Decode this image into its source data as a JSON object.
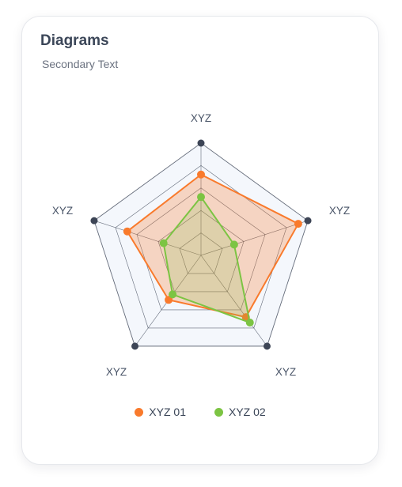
{
  "card": {
    "title": "Diagrams",
    "subtitle": "Secondary Text"
  },
  "colors": {
    "series1": "#f97a2c",
    "series1_fill": "rgba(249, 122, 44, 0.28)",
    "series2": "#7cc443",
    "series2_fill": "rgba(124, 196, 67, 0.18)",
    "grid": "#4a5263",
    "vertex": "#3d4556",
    "area_bg": "#f4f7fc"
  },
  "chart_data": {
    "type": "radar",
    "title": "Diagrams",
    "axes": [
      "XYZ",
      "XYZ",
      "XYZ",
      "XYZ",
      "XYZ"
    ],
    "range": [
      0,
      100
    ],
    "rings": 5,
    "series": [
      {
        "name": "XYZ 01",
        "values": [
          72,
          91,
          68,
          49,
          69
        ]
      },
      {
        "name": "XYZ 02",
        "values": [
          52,
          31,
          74,
          43,
          35
        ]
      }
    ],
    "legend_position": "bottom-center"
  }
}
